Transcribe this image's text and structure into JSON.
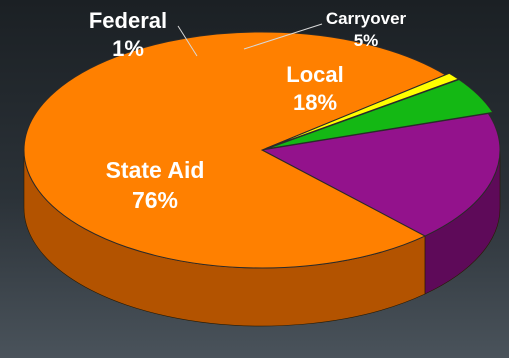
{
  "chart_data": {
    "type": "pie",
    "slices": [
      {
        "name": "Local",
        "value": 18,
        "label_name": "Local",
        "label_value": "18%",
        "color": "#93128c",
        "side_color": "#5e0a59"
      },
      {
        "name": "State Aid",
        "value": 76,
        "label_name": "State Aid",
        "label_value": "76%",
        "color": "#ff8000",
        "side_color": "#b35300"
      },
      {
        "name": "Federal",
        "value": 1,
        "label_name": "Federal",
        "label_value": "1%",
        "color": "#ffff00",
        "side_color": "#a8a800"
      },
      {
        "name": "Carryover",
        "value": 5,
        "label_name": "Carryover",
        "label_value": "5%",
        "color": "#14b814",
        "side_color": "#0a730a"
      }
    ],
    "style": "3d",
    "label_color": "#ffffff"
  }
}
